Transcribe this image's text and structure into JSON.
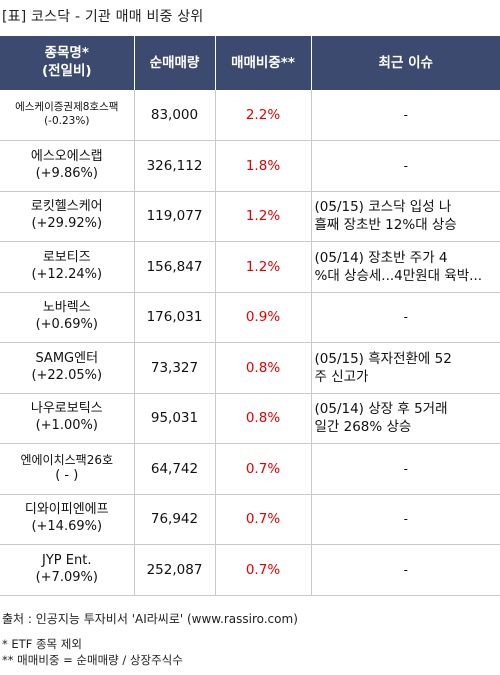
{
  "title": "[표] 코스닥 - 기관 매매 비중 상위",
  "headers": {
    "name_line1": "종목명*",
    "name_line2": "(전일비)",
    "volume": "순매매량",
    "ratio": "매매비중**",
    "issue": "최근 이슈"
  },
  "rows": [
    {
      "name": "에스케이증권제8호스팩",
      "change": "(-0.23%)",
      "volume": "83,000",
      "ratio": "2.2%",
      "issue1": "-",
      "issue2": ""
    },
    {
      "name": "에스오에스랩",
      "change": "(+9.86%)",
      "volume": "326,112",
      "ratio": "1.8%",
      "issue1": "-",
      "issue2": ""
    },
    {
      "name": "로킷헬스케어",
      "change": "(+29.92%)",
      "volume": "119,077",
      "ratio": "1.2%",
      "issue1": "(05/15) 코스닥 입성 나",
      "issue2": "흘째 장초반 12%대 상승"
    },
    {
      "name": "로보티즈",
      "change": "(+12.24%)",
      "volume": "156,847",
      "ratio": "1.2%",
      "issue1": "(05/14) 장초반 주가 4",
      "issue2": "%대 상승세...4만원대 육박..."
    },
    {
      "name": "노바렉스",
      "change": "(+0.69%)",
      "volume": "176,031",
      "ratio": "0.9%",
      "issue1": "-",
      "issue2": ""
    },
    {
      "name": "SAMG엔터",
      "change": "(+22.05%)",
      "volume": "73,327",
      "ratio": "0.8%",
      "issue1": "(05/15) 흑자전환에 52",
      "issue2": "주 신고가"
    },
    {
      "name": "나우로보틱스",
      "change": "(+1.00%)",
      "volume": "95,031",
      "ratio": "0.8%",
      "issue1": "(05/14) 상장 후 5거래",
      "issue2": "일간 268% 상승"
    },
    {
      "name": "엔에이치스팩26호",
      "change": "( - )",
      "volume": "64,742",
      "ratio": "0.7%",
      "issue1": "-",
      "issue2": ""
    },
    {
      "name": "디와이피엔에프",
      "change": "(+14.69%)",
      "volume": "76,942",
      "ratio": "0.7%",
      "issue1": "-",
      "issue2": ""
    },
    {
      "name": "JYP Ent.",
      "change": "(+7.09%)",
      "volume": "252,087",
      "ratio": "0.7%",
      "issue1": "-",
      "issue2": ""
    }
  ],
  "footer": {
    "source": "출처 : 인공지능 투자비서 'AI라씨로' (www.rassiro.com)",
    "note1": "* ETF 종목 제외",
    "note2": "** 매매비중 = 순매매량 / 상장주식수"
  },
  "colors": {
    "header_bg": "#3d4a70",
    "ratio_text": "#e60000"
  }
}
